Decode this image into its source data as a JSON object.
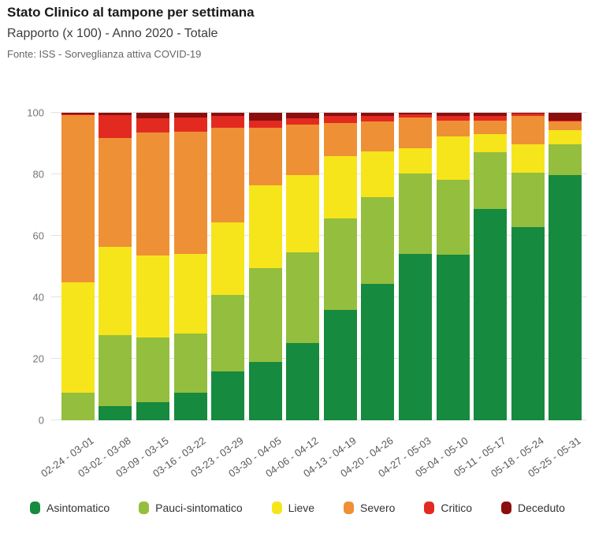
{
  "header": {
    "title": "Stato Clinico al tampone per settimana",
    "subtitle": "Rapporto (x 100) - Anno 2020 - Totale",
    "source": "Fonte: ISS - Sorveglianza attiva COVID-19"
  },
  "chart_data": {
    "type": "bar",
    "stacked": true,
    "title": "Stato Clinico al tampone per settimana",
    "subtitle": "Rapporto (x 100) - Anno 2020 - Totale",
    "source": "Fonte: ISS - Sorveglianza attiva COVID-19",
    "xlabel": "",
    "ylabel": "",
    "ylim": [
      0,
      100
    ],
    "yticks": [
      0,
      20,
      40,
      60,
      80,
      100
    ],
    "grid": true,
    "legend_position": "bottom",
    "categories": [
      "02-24 - 03-01",
      "03-02 - 03-08",
      "03-09 - 03-15",
      "03-16 - 03-22",
      "03-23 - 03-29",
      "03-30 - 04-05",
      "04-06 - 04-12",
      "04-13 - 04-19",
      "04-20 - 04-26",
      "04-27 - 05-03",
      "05-04 - 05-10",
      "05-11 - 05-17",
      "05-18 - 05-24",
      "05-25 - 05-31"
    ],
    "series": [
      {
        "name": "Asintomatico",
        "color": "#168a3e",
        "values": [
          0,
          4.6,
          6.0,
          8.9,
          16.0,
          19.0,
          25.1,
          35.8,
          44.4,
          54.2,
          53.8,
          68.7,
          62.7,
          79.8
        ]
      },
      {
        "name": "Pauci-sintomatico",
        "color": "#94be3d",
        "values": [
          9.0,
          23.1,
          21.0,
          19.2,
          24.9,
          30.5,
          29.5,
          29.9,
          28.2,
          26.1,
          24.3,
          18.4,
          17.7,
          10.0
        ]
      },
      {
        "name": "Lieve",
        "color": "#f6e51b",
        "values": [
          36.0,
          28.6,
          26.5,
          26.1,
          23.5,
          26.9,
          25.2,
          20.1,
          14.9,
          8.1,
          14.1,
          6.1,
          9.3,
          4.6
        ]
      },
      {
        "name": "Severo",
        "color": "#ee9036",
        "values": [
          54.3,
          35.5,
          40.0,
          39.6,
          30.8,
          18.8,
          16.3,
          10.9,
          9.7,
          10.2,
          5.2,
          4.2,
          9.2,
          2.8
        ]
      },
      {
        "name": "Critico",
        "color": "#e32a20",
        "values": [
          0.2,
          7.4,
          4.7,
          4.6,
          3.7,
          2.3,
          2.1,
          2.4,
          1.9,
          0.9,
          1.7,
          1.5,
          0.8,
          0.2
        ]
      },
      {
        "name": "Deceduto",
        "color": "#8b0f0f",
        "values": [
          0.5,
          0.8,
          1.8,
          1.6,
          1.1,
          2.5,
          1.8,
          0.9,
          0.9,
          0.5,
          0.9,
          1.1,
          0.3,
          2.6
        ]
      }
    ]
  }
}
